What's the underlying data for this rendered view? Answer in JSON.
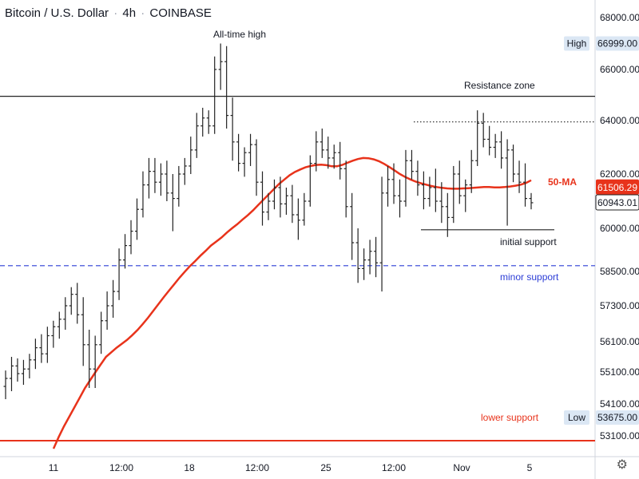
{
  "header": {
    "title": "Bitcoin / U.S. Dollar",
    "interval": "4h",
    "exchange": "COINBASE"
  },
  "colors": {
    "candle": "#222222",
    "ma": "#e8331b",
    "minor_support": "#2c3dd6",
    "lower_support": "#e8331b",
    "axis_text": "#131722",
    "high_low_box": "#dbe7f4",
    "ma_box": "#e8331b",
    "last_box": "#ffffff"
  },
  "chart_data": {
    "type": "candlestick",
    "series_name": "Bitcoin / U.S. Dollar",
    "ylim": [
      52700,
      68700
    ],
    "xlim": [
      0,
      745
    ],
    "y_ticks": [
      "68000.00",
      "66000.00",
      "64000.00",
      "62000.00",
      "60000.00",
      "58500.00",
      "57300.00",
      "56100.00",
      "55100.00",
      "54100.00",
      "53100.00"
    ],
    "x_ticks": [
      {
        "label": "11",
        "x": 67
      },
      {
        "label": "12:00",
        "x": 152
      },
      {
        "label": "18",
        "x": 237
      },
      {
        "label": "12:00",
        "x": 322
      },
      {
        "label": "25",
        "x": 408
      },
      {
        "label": "12:00",
        "x": 493
      },
      {
        "label": "Nov",
        "x": 578
      },
      {
        "label": "5",
        "x": 663
      }
    ],
    "high_label": "High",
    "high_value": "66999.00",
    "low_label": "Low",
    "low_value": "53675.00",
    "ma_label": "50-MA",
    "ma_value": "61506.29",
    "last_value": "60943.01",
    "candles_ohlc": [
      [
        54650,
        55150,
        54250,
        54900
      ],
      [
        54900,
        55600,
        54500,
        55300
      ],
      [
        55300,
        55550,
        54800,
        55050
      ],
      [
        55050,
        55500,
        54700,
        55200
      ],
      [
        55200,
        55700,
        54900,
        55500
      ],
      [
        55500,
        56200,
        55200,
        55900
      ],
      [
        55900,
        56350,
        55400,
        55700
      ],
      [
        55700,
        56600,
        55400,
        56300
      ],
      [
        56300,
        56800,
        55900,
        56600
      ],
      [
        56600,
        57100,
        56200,
        56850
      ],
      [
        56850,
        57600,
        56500,
        57300
      ],
      [
        57300,
        57950,
        57000,
        57700
      ],
      [
        57700,
        58100,
        56700,
        57000
      ],
      [
        57000,
        57600,
        55300,
        56000
      ],
      [
        56000,
        56500,
        54600,
        55200
      ],
      [
        55200,
        56300,
        54600,
        56000
      ],
      [
        56000,
        57100,
        55700,
        56800
      ],
      [
        56800,
        57800,
        56500,
        57300
      ],
      [
        57300,
        58200,
        56900,
        57800
      ],
      [
        57800,
        59300,
        57500,
        58900
      ],
      [
        58900,
        59800,
        58600,
        59400
      ],
      [
        59400,
        60300,
        59100,
        59900
      ],
      [
        59900,
        61100,
        59600,
        60700
      ],
      [
        60700,
        62100,
        60400,
        61600
      ],
      [
        61600,
        62600,
        61100,
        62100
      ],
      [
        62100,
        62600,
        61300,
        61700
      ],
      [
        61700,
        62400,
        61200,
        62000
      ],
      [
        62000,
        62500,
        61000,
        61300
      ],
      [
        61300,
        62000,
        59900,
        61100
      ],
      [
        61100,
        62300,
        60800,
        62000
      ],
      [
        62000,
        62600,
        61600,
        62300
      ],
      [
        62300,
        63400,
        62000,
        62900
      ],
      [
        62900,
        64300,
        62600,
        63800
      ],
      [
        63800,
        64500,
        63400,
        64100
      ],
      [
        64100,
        64400,
        63500,
        63800
      ],
      [
        63800,
        66500,
        63500,
        66000
      ],
      [
        66000,
        67000,
        65200,
        66300
      ],
      [
        66300,
        66900,
        63700,
        64200
      ],
      [
        64200,
        64900,
        62500,
        63200
      ],
      [
        63200,
        63500,
        62100,
        62400
      ],
      [
        62400,
        63000,
        61900,
        62800
      ],
      [
        62800,
        63500,
        62300,
        63100
      ],
      [
        63100,
        63300,
        61200,
        61700
      ],
      [
        61700,
        62100,
        60100,
        60600
      ],
      [
        60600,
        61300,
        60300,
        61000
      ],
      [
        61000,
        61800,
        60700,
        61500
      ],
      [
        61500,
        61900,
        60400,
        60900
      ],
      [
        60900,
        61500,
        60500,
        61200
      ],
      [
        61200,
        61600,
        60200,
        60500
      ],
      [
        60500,
        61100,
        59600,
        60300
      ],
      [
        60300,
        61300,
        60100,
        61000
      ],
      [
        61000,
        62700,
        60800,
        62400
      ],
      [
        62400,
        63600,
        62100,
        63200
      ],
      [
        63200,
        63700,
        62600,
        62900
      ],
      [
        62900,
        63400,
        62200,
        62600
      ],
      [
        62600,
        63100,
        62200,
        62800
      ],
      [
        62800,
        63200,
        61800,
        62200
      ],
      [
        62200,
        62500,
        60400,
        60800
      ],
      [
        60800,
        61300,
        58900,
        59500
      ],
      [
        59500,
        60000,
        58100,
        58600
      ],
      [
        58600,
        59300,
        58200,
        58900
      ],
      [
        58900,
        59600,
        58400,
        59200
      ],
      [
        59200,
        59700,
        58300,
        58800
      ],
      [
        58800,
        61900,
        57800,
        61300
      ],
      [
        61300,
        62300,
        60800,
        61800
      ],
      [
        61800,
        62400,
        60900,
        61200
      ],
      [
        61200,
        61800,
        60400,
        61000
      ],
      [
        61000,
        62900,
        60800,
        62500
      ],
      [
        62500,
        62900,
        61800,
        62100
      ],
      [
        62100,
        62500,
        61200,
        61600
      ],
      [
        61600,
        62100,
        60700,
        61100
      ],
      [
        61100,
        61900,
        60800,
        61500
      ],
      [
        61500,
        62200,
        60600,
        61000
      ],
      [
        61000,
        61700,
        60200,
        60800
      ],
      [
        60800,
        61300,
        59700,
        60400
      ],
      [
        60400,
        62300,
        60200,
        62000
      ],
      [
        62000,
        62500,
        60900,
        61200
      ],
      [
        61200,
        61800,
        60600,
        61600
      ],
      [
        61600,
        62900,
        61300,
        62500
      ],
      [
        62500,
        64400,
        62300,
        63900
      ],
      [
        63900,
        64300,
        63000,
        63300
      ],
      [
        63300,
        63800,
        62700,
        63000
      ],
      [
        63000,
        63500,
        62600,
        63200
      ],
      [
        63200,
        63600,
        62200,
        62600
      ],
      [
        62600,
        63300,
        60100,
        62900
      ],
      [
        62900,
        63100,
        61700,
        62000
      ],
      [
        62000,
        62500,
        61300,
        61700
      ],
      [
        61700,
        62400,
        60800,
        61100
      ],
      [
        61100,
        61300,
        60700,
        60943
      ]
    ],
    "ma_values": [
      52700,
      53070,
      53400,
      53700,
      54000,
      54300,
      54600,
      54850,
      55100,
      55350,
      55600,
      55750,
      55900,
      56030,
      56160,
      56320,
      56490,
      56690,
      56900,
      57130,
      57360,
      57600,
      57830,
      58050,
      58280,
      58490,
      58690,
      58860,
      59050,
      59220,
      59400,
      59540,
      59680,
      59850,
      60000,
      60150,
      60320,
      60480,
      60660,
      60860,
      61060,
      61250,
      61450,
      61640,
      61800,
      61960,
      62080,
      62170,
      62250,
      62300,
      62340,
      62350,
      62330,
      62290,
      62290,
      62340,
      62420,
      62500,
      62560,
      62600,
      62590,
      62550,
      62480,
      62380,
      62260,
      62130,
      62000,
      61890,
      61800,
      61720,
      61660,
      61610,
      61560,
      61520,
      61490,
      61470,
      61460,
      61460,
      61470,
      61480,
      61490,
      61510,
      61520,
      61520,
      61510,
      61510,
      61520,
      61540,
      61570,
      61610,
      61670,
      61770
    ],
    "lines": [
      {
        "name": "resistance-zone",
        "value": 64950,
        "style": "solid",
        "color": "#222222",
        "label": "Resistance zone"
      },
      {
        "name": "recent-high",
        "value": 63950,
        "style": "dotted",
        "color": "#222222",
        "label": ""
      },
      {
        "name": "initial-support",
        "value": 59950,
        "style": "solid",
        "color": "#222222",
        "label": "initial support"
      },
      {
        "name": "minor-support",
        "value": 58700,
        "style": "dashed",
        "color": "#2c3dd6",
        "label": "minor support"
      },
      {
        "name": "lower-support",
        "value": 52950,
        "style": "solid",
        "color": "#e8331b",
        "label": "lower support"
      }
    ],
    "annotations": [
      {
        "name": "all-time-high",
        "text": "All-time high"
      },
      {
        "name": "resistance-zone",
        "text": "Resistance zone"
      },
      {
        "name": "initial-support",
        "text": "initial support"
      },
      {
        "name": "minor-support",
        "text": "minor support"
      },
      {
        "name": "lower-support",
        "text": "lower support"
      },
      {
        "name": "ma-label",
        "text": "50-MA"
      }
    ]
  },
  "settings_icon": "gear-icon"
}
